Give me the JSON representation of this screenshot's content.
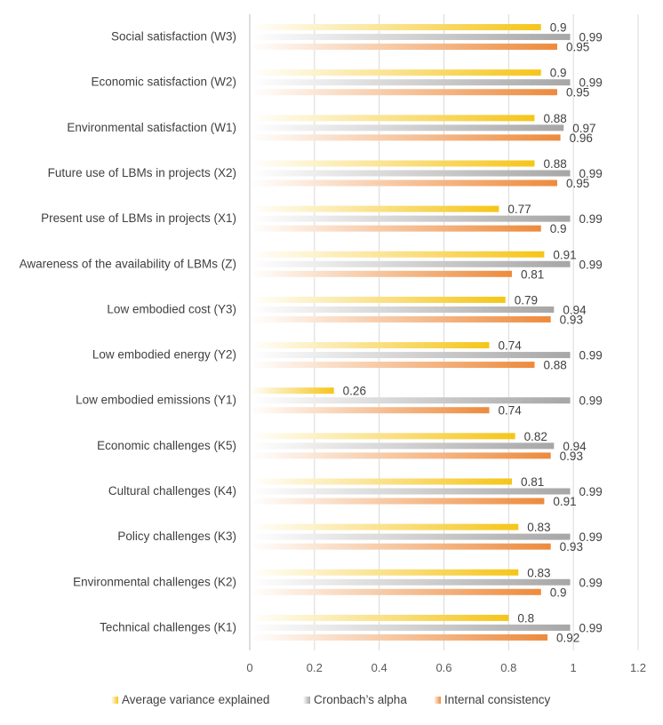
{
  "chart_data": {
    "type": "bar",
    "orientation": "horizontal",
    "categories": [
      "Social satisfaction  (W3)",
      "Economic satisfaction (W2)",
      "Environmental satisfaction (W1)",
      "Future use of LBMs in projects (X2)",
      "Present use of LBMs in projects (X1)",
      "Awareness of the availability of LBMs (Z)",
      "Low embodied cost (Y3)",
      "Low embodied energy (Y2)",
      "Low embodied emissions (Y1)",
      "Economic challenges (K5)",
      "Cultural challenges (K4)",
      "Policy challenges (K3)",
      "Environmental challenges (K2)",
      "Technical challenges (K1)"
    ],
    "series": [
      {
        "name": "Average variance explained",
        "color": "#f5c518",
        "values": [
          0.9,
          0.9,
          0.88,
          0.88,
          0.77,
          0.91,
          0.79,
          0.74,
          0.26,
          0.82,
          0.81,
          0.83,
          0.83,
          0.8
        ]
      },
      {
        "name": "Cronbach’s alpha",
        "color": "#a6a6a6",
        "values": [
          0.99,
          0.99,
          0.97,
          0.99,
          0.99,
          0.99,
          0.94,
          0.99,
          0.99,
          0.94,
          0.99,
          0.99,
          0.99,
          0.99
        ]
      },
      {
        "name": "Internal consistency",
        "color": "#ed8a3c",
        "values": [
          0.95,
          0.95,
          0.96,
          0.95,
          0.9,
          0.81,
          0.93,
          0.88,
          0.74,
          0.93,
          0.91,
          0.93,
          0.9,
          0.92
        ]
      }
    ],
    "xlim": [
      0,
      1.2
    ],
    "x_ticks": [
      "0",
      "0.2",
      "0.4",
      "0.6",
      "0.8",
      "1",
      "1.2"
    ],
    "grid": true,
    "legend_position": "bottom",
    "title": "",
    "xlabel": "",
    "ylabel": ""
  }
}
